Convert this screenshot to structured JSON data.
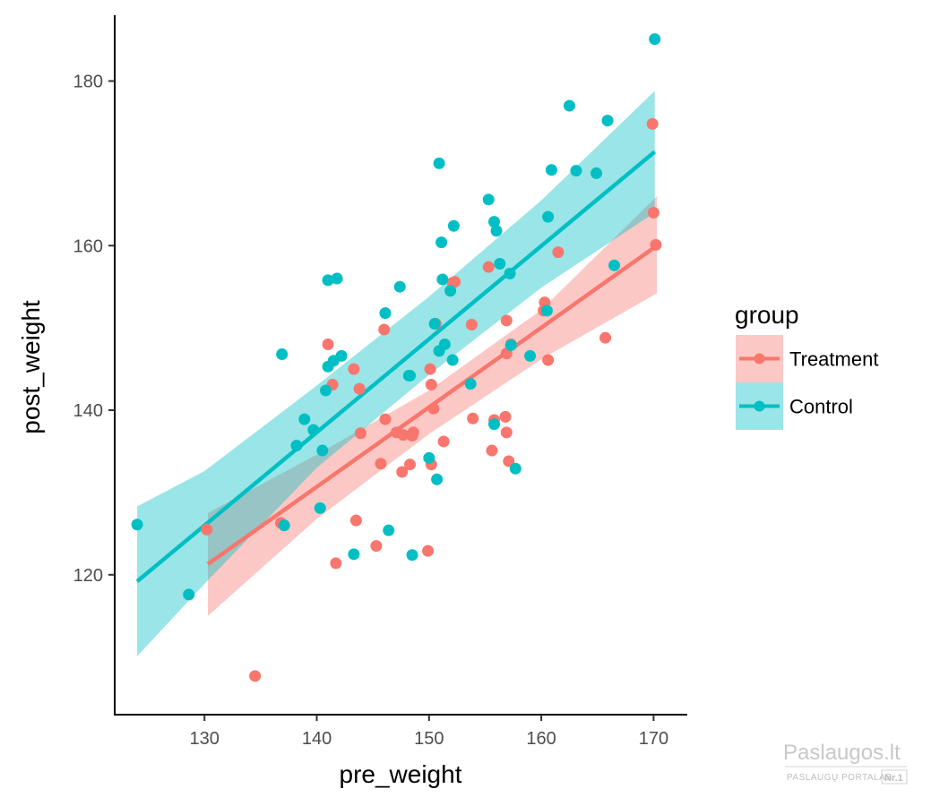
{
  "chart_data": {
    "type": "scatter",
    "xlabel": "pre_weight",
    "ylabel": "post_weight",
    "xlim": [
      122,
      173
    ],
    "ylim": [
      103,
      188
    ],
    "x_ticks": [
      130,
      140,
      150,
      160,
      170
    ],
    "y_ticks": [
      120,
      140,
      160,
      180
    ],
    "grid": false,
    "legend": {
      "title": "group",
      "position": "right"
    },
    "series": [
      {
        "name": "Treatment",
        "color": "#F8766D",
        "band_color": "#F8766D",
        "fit": {
          "x": [
            130.3,
            170.3
          ],
          "y": [
            121.3,
            160.0
          ]
        },
        "ci_lower": {
          "x": [
            130.3,
            140,
            150,
            160,
            170.3
          ],
          "y": [
            115.0,
            126.8,
            137.1,
            146.2,
            154.2
          ]
        },
        "ci_upper": {
          "x": [
            130.3,
            140,
            150,
            160,
            170.3
          ],
          "y": [
            127.5,
            134.6,
            142.4,
            152.2,
            166.0
          ]
        },
        "points": [
          [
            134.5,
            107.7
          ],
          [
            130.2,
            125.5
          ],
          [
            136.8,
            126.3
          ],
          [
            141.7,
            121.4
          ],
          [
            143.5,
            126.6
          ],
          [
            145.3,
            123.5
          ],
          [
            149.9,
            122.9
          ],
          [
            141.0,
            148.0
          ],
          [
            141.4,
            143.1
          ],
          [
            143.3,
            145.0
          ],
          [
            143.8,
            142.6
          ],
          [
            143.9,
            137.2
          ],
          [
            146.0,
            149.8
          ],
          [
            146.1,
            138.9
          ],
          [
            145.7,
            133.5
          ],
          [
            147.1,
            137.3
          ],
          [
            147.7,
            137.0
          ],
          [
            147.6,
            132.5
          ],
          [
            148.3,
            133.4
          ],
          [
            148.5,
            136.9
          ],
          [
            148.6,
            137.3
          ],
          [
            150.1,
            145.0
          ],
          [
            150.2,
            143.1
          ],
          [
            150.4,
            140.2
          ],
          [
            150.2,
            133.4
          ],
          [
            150.6,
            150.5
          ],
          [
            151.3,
            136.2
          ],
          [
            152.3,
            155.6
          ],
          [
            153.9,
            139.0
          ],
          [
            153.8,
            150.4
          ],
          [
            155.3,
            157.4
          ],
          [
            155.6,
            135.1
          ],
          [
            155.8,
            138.8
          ],
          [
            156.8,
            139.2
          ],
          [
            156.9,
            137.3
          ],
          [
            157.1,
            133.8
          ],
          [
            156.9,
            146.9
          ],
          [
            156.9,
            150.9
          ],
          [
            157.3,
            148.0
          ],
          [
            160.3,
            153.1
          ],
          [
            160.2,
            152.1
          ],
          [
            160.6,
            146.1
          ],
          [
            161.5,
            159.2
          ],
          [
            165.7,
            148.8
          ],
          [
            170.0,
            164.0
          ],
          [
            169.9,
            174.8
          ],
          [
            170.2,
            160.1
          ],
          [
            137.1,
            126.0
          ],
          [
            152.1,
            155.5
          ]
        ]
      },
      {
        "name": "Control",
        "color": "#00BFC4",
        "band_color": "#00BFC4",
        "fit": {
          "x": [
            124.0,
            170.1
          ],
          "y": [
            119.2,
            171.4
          ]
        },
        "ci_lower": {
          "x": [
            124.0,
            130,
            140,
            150,
            160,
            170.1
          ],
          "y": [
            110.1,
            118.9,
            133.0,
            144.3,
            154.9,
            164.0
          ]
        },
        "ci_upper": {
          "x": [
            124.0,
            130,
            140,
            150,
            160,
            170.1
          ],
          "y": [
            128.3,
            132.6,
            143.0,
            153.8,
            165.5,
            178.8
          ]
        },
        "points": [
          [
            124.0,
            126.1
          ],
          [
            128.6,
            117.6
          ],
          [
            137.1,
            126.0
          ],
          [
            136.9,
            146.8
          ],
          [
            138.2,
            135.7
          ],
          [
            138.9,
            138.9
          ],
          [
            139.7,
            137.6
          ],
          [
            140.3,
            128.1
          ],
          [
            140.5,
            135.1
          ],
          [
            140.8,
            142.4
          ],
          [
            141.0,
            145.3
          ],
          [
            141.0,
            155.8
          ],
          [
            141.8,
            156.0
          ],
          [
            141.5,
            146.0
          ],
          [
            142.2,
            146.6
          ],
          [
            143.3,
            122.5
          ],
          [
            146.1,
            151.8
          ],
          [
            146.4,
            125.4
          ],
          [
            147.4,
            155.0
          ],
          [
            148.2,
            144.2
          ],
          [
            148.5,
            122.4
          ],
          [
            148.3,
            144.2
          ],
          [
            150.0,
            134.2
          ],
          [
            150.5,
            150.5
          ],
          [
            150.7,
            131.6
          ],
          [
            150.9,
            170.0
          ],
          [
            150.9,
            147.2
          ],
          [
            151.1,
            160.4
          ],
          [
            151.4,
            148.0
          ],
          [
            151.2,
            155.9
          ],
          [
            151.9,
            154.5
          ],
          [
            152.1,
            146.1
          ],
          [
            152.2,
            162.4
          ],
          [
            153.7,
            143.2
          ],
          [
            155.3,
            165.6
          ],
          [
            155.8,
            162.9
          ],
          [
            155.8,
            138.3
          ],
          [
            156.0,
            161.8
          ],
          [
            156.3,
            157.8
          ],
          [
            157.3,
            147.9
          ],
          [
            157.2,
            156.6
          ],
          [
            157.7,
            132.9
          ],
          [
            159.0,
            146.6
          ],
          [
            160.5,
            152.1
          ],
          [
            160.6,
            163.5
          ],
          [
            160.9,
            169.2
          ],
          [
            162.5,
            177.0
          ],
          [
            163.1,
            169.1
          ],
          [
            164.9,
            168.8
          ],
          [
            165.9,
            175.2
          ],
          [
            166.5,
            157.6
          ],
          [
            170.1,
            185.1
          ]
        ]
      }
    ]
  },
  "watermark": {
    "title": "Paslaugos.lt",
    "subtitle": "PASLAUGŲ PORTALAS",
    "badge": "Nr.1"
  }
}
